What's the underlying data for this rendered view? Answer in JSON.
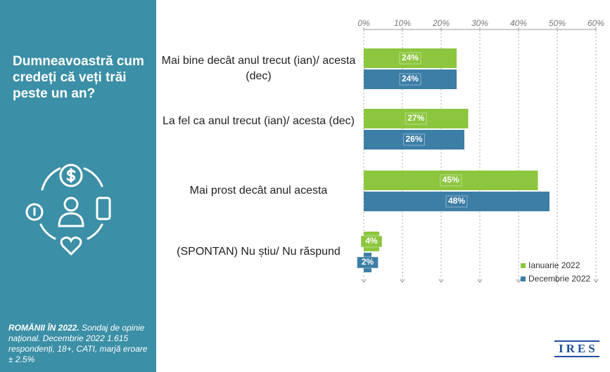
{
  "chart_data": {
    "type": "hbar",
    "title": "Dumneavoastră cum credeți că veți trăi peste un an?",
    "categories": [
      "Mai bine decât anul trecut (ian)/ acesta (dec)",
      "La fel ca anul trecut (ian)/ acesta (dec)",
      "Mai prost decât anul acesta",
      "(SPONTAN) Nu știu/ Nu răspund"
    ],
    "series": [
      {
        "name": "Ianuarie 2022",
        "color": "#8cc63e",
        "values": [
          24,
          27,
          45,
          4
        ],
        "value_labels": [
          "24%",
          "27%",
          "45%",
          "4%"
        ]
      },
      {
        "name": "Decembrie 2022",
        "color": "#3c7ea6",
        "values": [
          24,
          26,
          48,
          2
        ],
        "value_labels": [
          "24%",
          "26%",
          "48%",
          "2%"
        ]
      }
    ],
    "xlim": [
      0,
      60
    ],
    "xticks": [
      {
        "value": 0,
        "label": "0%"
      },
      {
        "value": 10,
        "label": "10%"
      },
      {
        "value": 20,
        "label": "20%"
      },
      {
        "value": 30,
        "label": "30%"
      },
      {
        "value": 40,
        "label": "40%"
      },
      {
        "value": 50,
        "label": "50%"
      },
      {
        "value": 60,
        "label": "60%"
      }
    ],
    "grid": true,
    "legend": "bottom-right"
  },
  "footer": {
    "heading": "ROMÂNII ÎN 2022.",
    "text": "Sondaj de opinie național. Decembrie 2022 1.615 respondenți, 18+, CATI, marjă eroare ± 2.5%"
  },
  "logo": "IRES"
}
